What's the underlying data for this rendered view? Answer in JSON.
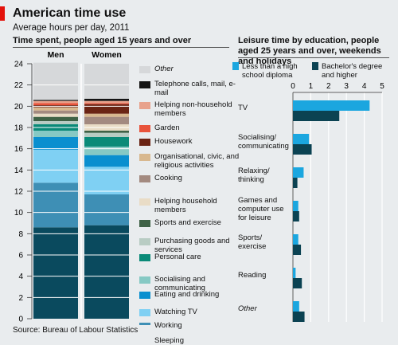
{
  "header": {
    "title": "American time use",
    "subtitle": "Average hours per day, 2011"
  },
  "left_panel": {
    "heading": "Time spent, people aged 15 years and over"
  },
  "right_panel": {
    "heading": "Leisure time by education, people aged 25 years and over, weekends and holidays"
  },
  "source": "Source: Bureau of Labour Statistics",
  "colors": {
    "sleeping": "#0a4a5e",
    "working": "#3e8fb5",
    "watching_tv": "#7fd0f3",
    "eating": "#0a8fcf",
    "socialising": "#86c9c4",
    "personal_care": "#0a8a78",
    "purchasing": "#b8ccc3",
    "sports": "#3f6246",
    "helping_household": "#e9dcc6",
    "cooking": "#a38a80",
    "organisational": "#d8b88f",
    "housework": "#6b2414",
    "garden": "#e8533b",
    "helping_non_household": "#e8a28c",
    "telephone": "#141414",
    "other": "#d6d8da",
    "less_than_hs": "#1ba6df",
    "bachelor": "#0b4252"
  },
  "chart_data": [
    {
      "type": "bar",
      "stacked": true,
      "title": "Time spent, people aged 15 years and over",
      "categories": [
        "Men",
        "Women"
      ],
      "ylim": [
        0,
        24
      ],
      "yticks": [
        "0",
        "2",
        "4",
        "6",
        "8",
        "10",
        "12",
        "14",
        "16",
        "18",
        "20",
        "22",
        "24"
      ],
      "grid": true,
      "legend_position": "right",
      "series": [
        {
          "name": "Sleeping",
          "values": [
            8.6,
            8.8
          ],
          "color_key": "sleeping"
        },
        {
          "name": "Working",
          "values": [
            4.2,
            2.9
          ],
          "color_key": "working"
        },
        {
          "name": "Watching TV",
          "values": [
            3.1,
            2.6
          ],
          "color_key": "watching_tv"
        },
        {
          "name": "Eating and drinking",
          "values": [
            1.2,
            1.1
          ],
          "color_key": "eating"
        },
        {
          "name": "Socialising and communicating",
          "values": [
            0.6,
            0.8
          ],
          "color_key": "socialising"
        },
        {
          "name": "Personal care",
          "values": [
            0.6,
            0.9
          ],
          "color_key": "personal_care"
        },
        {
          "name": "Purchasing goods and services",
          "values": [
            0.3,
            0.4
          ],
          "color_key": "purchasing"
        },
        {
          "name": "Sports and exercise",
          "values": [
            0.4,
            0.2
          ],
          "color_key": "sports"
        },
        {
          "name": "Helping household members",
          "values": [
            0.3,
            0.6
          ],
          "color_key": "helping_household"
        },
        {
          "name": "Cooking",
          "values": [
            0.3,
            0.7
          ],
          "color_key": "cooking"
        },
        {
          "name": "Organisational, civic, and religious activities",
          "values": [
            0.3,
            0.3
          ],
          "color_key": "organisational"
        },
        {
          "name": "Housework",
          "values": [
            0.2,
            0.9
          ],
          "color_key": "housework"
        },
        {
          "name": "Garden",
          "values": [
            0.2,
            0.1
          ],
          "color_key": "garden"
        },
        {
          "name": "Helping non-household members",
          "values": [
            0.2,
            0.2
          ],
          "color_key": "helping_non_household"
        },
        {
          "name": "Telephone calls, mail, e-mail",
          "values": [
            0.1,
            0.2
          ],
          "color_key": "telephone"
        },
        {
          "name": "Other",
          "values": [
            3.5,
            3.3
          ],
          "color_key": "other"
        }
      ]
    },
    {
      "type": "bar",
      "orientation": "horizontal",
      "title": "Leisure time by education, people aged 25 years and over, weekends and holidays",
      "categories": [
        "TV",
        "Socialising/ communicating",
        "Relaxing/ thinking",
        "Games and computer use for leisure",
        "Sports/ exercise",
        "Reading",
        "Other"
      ],
      "xlim": [
        0,
        5
      ],
      "xticks": [
        "0",
        "1",
        "2",
        "3",
        "4",
        "5"
      ],
      "grid": true,
      "legend_position": "top",
      "series": [
        {
          "name": "Less than a high school diploma",
          "values": [
            4.3,
            0.9,
            0.6,
            0.3,
            0.3,
            0.15,
            0.35
          ],
          "color_key": "less_than_hs"
        },
        {
          "name": "Bachelor's degree and higher",
          "values": [
            2.6,
            1.05,
            0.25,
            0.35,
            0.45,
            0.5,
            0.65
          ],
          "color_key": "bachelor"
        }
      ]
    }
  ]
}
